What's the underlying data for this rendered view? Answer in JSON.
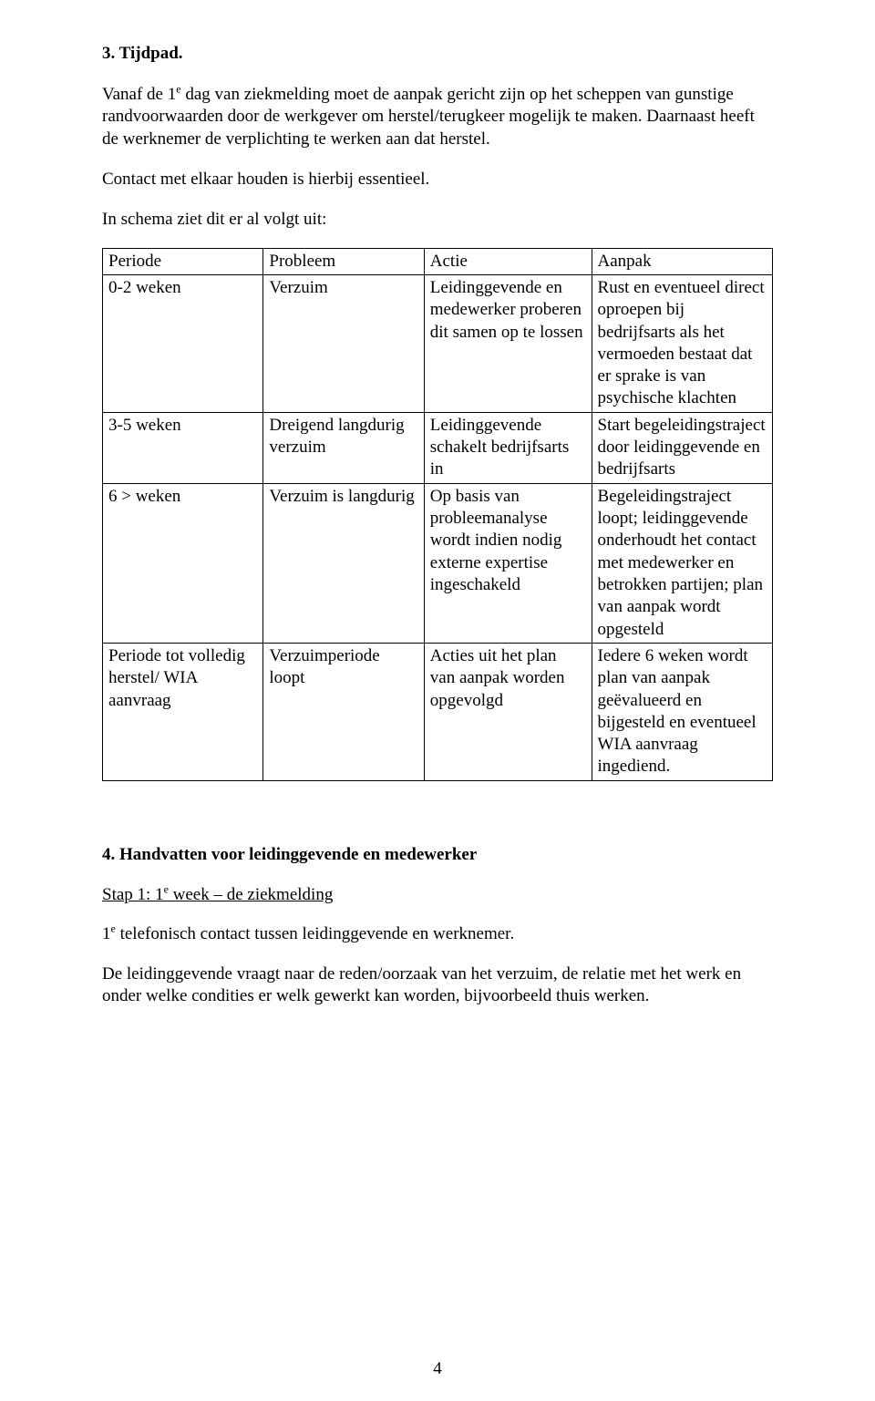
{
  "section3": {
    "heading": "3.  Tijdpad.",
    "para1_pre": "Vanaf de 1",
    "para1_sup": "e",
    "para1_post": " dag van ziekmelding moet de aanpak gericht zijn op het scheppen van gunstige randvoorwaarden door de werkgever om herstel/terugkeer mogelijk te maken. Daarnaast heeft de werknemer de verplichting te werken aan dat herstel.",
    "para2": "Contact met elkaar houden is hierbij essentieel.",
    "para3": "In schema ziet dit er al volgt uit:"
  },
  "table": {
    "headers": {
      "periode": "Periode",
      "probleem": "Probleem",
      "actie": "Actie",
      "aanpak": "Aanpak"
    },
    "rows": [
      {
        "periode": "0-2 weken",
        "probleem": "Verzuim",
        "actie": "Leidinggevende en medewerker proberen dit samen op te lossen",
        "aanpak": "Rust en eventueel direct oproepen bij bedrijfsarts als het vermoeden bestaat dat er sprake is van psychische klachten"
      },
      {
        "periode": "3-5 weken",
        "probleem": "Dreigend langdurig verzuim",
        "actie": "Leidinggevende schakelt bedrijfsarts in",
        "aanpak": "Start begeleidingstraject door leidinggevende en bedrijfsarts"
      },
      {
        "periode": "6 > weken",
        "probleem": "Verzuim is langdurig",
        "actie": "Op basis van probleemanalyse wordt indien nodig externe expertise ingeschakeld",
        "aanpak": "Begeleidingstraject loopt; leidinggevende onderhoudt het contact met medewerker en betrokken partijen; plan van aanpak wordt opgesteld"
      },
      {
        "periode": "Periode tot volledig herstel/ WIA aanvraag",
        "probleem": "Verzuimperiode loopt",
        "actie": "Acties uit het plan van aanpak worden opgevolgd",
        "aanpak": "Iedere 6 weken wordt plan van aanpak geëvalueerd en  bijgesteld en eventueel WIA aanvraag ingediend."
      }
    ]
  },
  "section4": {
    "heading": "4.  Handvatten voor leidinggevende en medewerker",
    "step_pre": "Stap 1: 1",
    "step_sup": "e",
    "step_post": " week – de ziekmelding",
    "line2_pre": "1",
    "line2_sup": "e",
    "line2_post": " telefonisch contact tussen leidinggevende en werknemer.",
    "para": "De leidinggevende vraagt naar de reden/oorzaak van het verzuim, de relatie met het werk en onder welke condities er welk gewerkt kan worden, bijvoorbeeld thuis werken."
  },
  "pageNumber": "4"
}
